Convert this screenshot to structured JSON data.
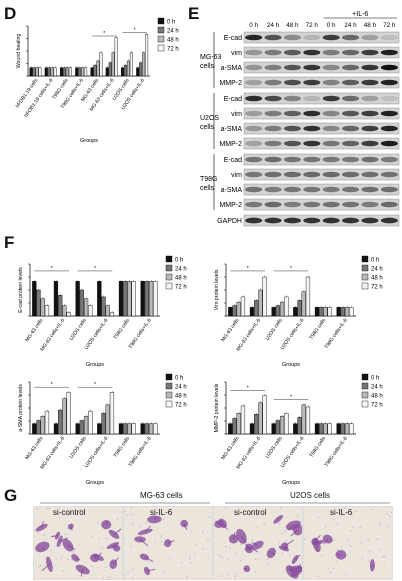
{
  "panels": {
    "D": "D",
    "E": "E",
    "F": "F",
    "G": "G"
  },
  "legend": [
    "0 h",
    "24 h",
    "48 h",
    "72 h"
  ],
  "bar_colors": [
    "#111111",
    "#777777",
    "#b9b9b9",
    "#f4f4f4"
  ],
  "chart_data": [
    {
      "id": "D",
      "type": "bar",
      "ylabel": "Wound healing",
      "xlabel": "Groups",
      "ylim": [
        0,
        6
      ],
      "categories": [
        "hFOB1.19 cells",
        "hFOB1.19 cells+IL-6",
        "T98G cells",
        "T98G cells+IL-6",
        "MG-63 cells",
        "MG-63 cells+IL-6",
        "U2OS cells",
        "U2OS cells+IL-6"
      ],
      "series": [
        {
          "name": "0 h",
          "values": [
            1,
            1,
            1,
            1,
            1,
            1,
            1,
            1
          ]
        },
        {
          "name": "24 h",
          "values": [
            1,
            1,
            1,
            1,
            1.3,
            1.6,
            1.3,
            1.6
          ]
        },
        {
          "name": "48 h",
          "values": [
            1,
            1,
            1,
            1,
            1.8,
            2.8,
            1.8,
            2.8
          ]
        },
        {
          "name": "72 h",
          "values": [
            1,
            1,
            1,
            1,
            2.8,
            4.6,
            2.8,
            5.0
          ]
        }
      ]
    },
    {
      "id": "F1",
      "type": "bar",
      "ylabel": "E-cad protein levels",
      "xlabel": "Groups",
      "ylim": [
        0,
        1.5
      ],
      "categories": [
        "MG-63 cells",
        "MG-63 cells+IL-6",
        "U2OS cells",
        "U2OS cells+IL-6",
        "T98G cells",
        "T98G cells+IL-6"
      ],
      "series": [
        {
          "name": "0 h",
          "values": [
            1.0,
            1.0,
            1.0,
            1.0,
            1.0,
            1.0
          ]
        },
        {
          "name": "24 h",
          "values": [
            0.75,
            0.6,
            0.75,
            0.55,
            1.0,
            1.0
          ]
        },
        {
          "name": "48 h",
          "values": [
            0.5,
            0.3,
            0.5,
            0.3,
            1.0,
            1.0
          ]
        },
        {
          "name": "72 h",
          "values": [
            0.3,
            0.1,
            0.3,
            0.1,
            1.0,
            1.0
          ]
        }
      ]
    },
    {
      "id": "F2",
      "type": "bar",
      "ylabel": "Vim protein levels",
      "xlabel": "Groups",
      "ylim": [
        0,
        6
      ],
      "categories": [
        "MG-63 cells",
        "MG-63 cells+IL-6",
        "U2OS cells",
        "U2OS cells+IL-6",
        "T98G cells",
        "T98G cells+IL-6"
      ],
      "series": [
        {
          "name": "0 h",
          "values": [
            1,
            1,
            1,
            1,
            1,
            1
          ]
        },
        {
          "name": "24 h",
          "values": [
            1.2,
            1.8,
            1.2,
            1.8,
            1,
            1
          ]
        },
        {
          "name": "48 h",
          "values": [
            1.6,
            3.0,
            1.6,
            2.8,
            1,
            1
          ]
        },
        {
          "name": "72 h",
          "values": [
            2.2,
            4.5,
            2.2,
            4.5,
            1,
            1
          ]
        }
      ]
    },
    {
      "id": "F3",
      "type": "bar",
      "ylabel": "a-SMA protein levels",
      "xlabel": "Groups",
      "ylim": [
        0,
        5
      ],
      "categories": [
        "MG-63 cells",
        "MG-63 cells+IL-6",
        "U2OS cells",
        "U2OS cells+IL-6",
        "T98G cells",
        "T98G cells+IL-6"
      ],
      "series": [
        {
          "name": "0 h",
          "values": [
            1,
            1,
            1,
            1,
            1,
            1
          ]
        },
        {
          "name": "24 h",
          "values": [
            1.3,
            2.3,
            1.3,
            2.0,
            1,
            1
          ]
        },
        {
          "name": "48 h",
          "values": [
            1.7,
            3.4,
            1.7,
            2.8,
            1,
            1
          ]
        },
        {
          "name": "72 h",
          "values": [
            2.2,
            4.0,
            2.2,
            4.0,
            1,
            1
          ]
        }
      ]
    },
    {
      "id": "F4",
      "type": "bar",
      "ylabel": "MMP-2 protein levels",
      "xlabel": "Groups",
      "ylim": [
        0,
        5
      ],
      "categories": [
        "MG-63 cells",
        "MG-63 cells+IL-6",
        "U2OS cells",
        "U2OS cells+IL-6",
        "T98G cells",
        "T98G cells+IL-6"
      ],
      "series": [
        {
          "name": "0 h",
          "values": [
            1,
            1,
            1,
            1,
            1,
            1
          ]
        },
        {
          "name": "24 h",
          "values": [
            1.5,
            1.9,
            1.3,
            1.6,
            1,
            1
          ]
        },
        {
          "name": "48 h",
          "values": [
            2.0,
            3.0,
            1.7,
            2.8,
            1,
            1
          ]
        },
        {
          "name": "72 h",
          "values": [
            2.7,
            3.7,
            2.0,
            2.6,
            1,
            1
          ]
        }
      ]
    }
  ],
  "blot": {
    "header_il6": "+IL-6",
    "time_labels": [
      "0 h",
      "24 h",
      "48 h",
      "72 h",
      "0 h",
      "24 h",
      "48 h",
      "72 h"
    ],
    "groups": [
      {
        "cell": "MG-63 cells",
        "proteins": [
          "E-cad",
          "vim",
          "a-SMA",
          "MMP-2"
        ]
      },
      {
        "cell": "U2OS cells",
        "proteins": [
          "E-cad",
          "vim",
          "a-SMA",
          "MMP-2"
        ]
      },
      {
        "cell": "T98G cells",
        "proteins": [
          "E-cad",
          "vim",
          "a-SMA",
          "MMP-2"
        ]
      }
    ],
    "gapdh": "GAPDH"
  },
  "micro": {
    "mg63_header": "MG-63   cells",
    "u2os_header": "U2OS cells",
    "labels": [
      "si-control",
      "si-IL-6",
      "si-control",
      "si-IL-6"
    ]
  }
}
